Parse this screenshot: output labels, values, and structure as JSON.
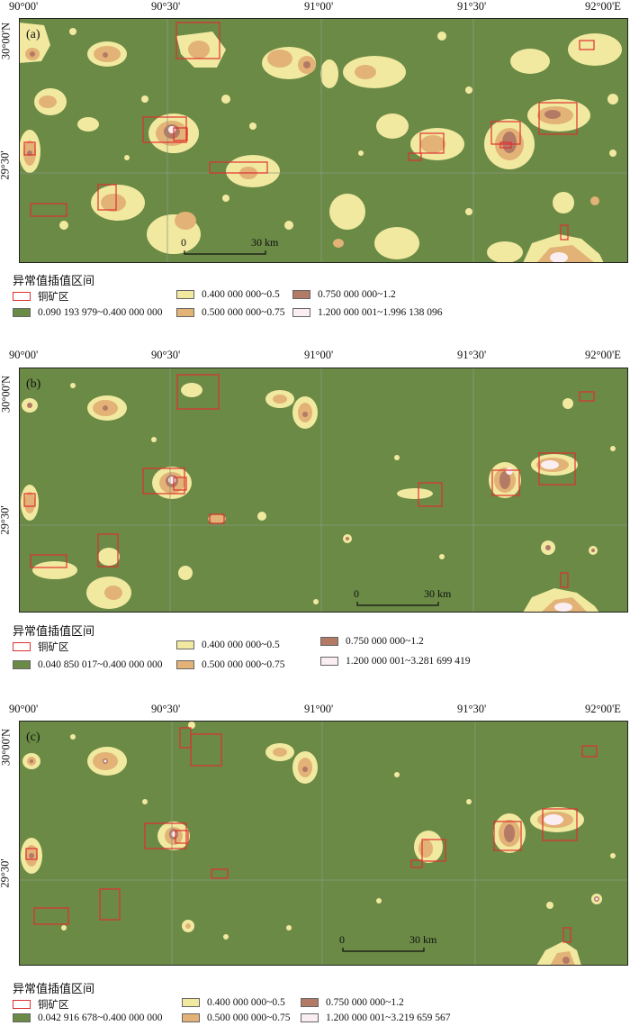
{
  "lon_labels": [
    "90°00'",
    "90°30'",
    "91°00'",
    "91°30'",
    "92°00'E"
  ],
  "lat_labels": [
    "30°00'N",
    "29°30'"
  ],
  "scale": {
    "zero": "0",
    "dist": "30 km"
  },
  "colors": {
    "bg": "#6a8a45",
    "c1": "#f2e9a0",
    "c2": "#e2b276",
    "c3": "#b37a66",
    "c4": "#fbeef2",
    "copper": "#e03030",
    "grid": "#8d9a80"
  },
  "panels": [
    {
      "id": "a",
      "label": "(a)",
      "legend": {
        "title": "异常值插值区间",
        "copper": "铜矿区",
        "r0": "0.090 193 979~0.400 000 000",
        "r1": "0.400 000 000~0.5",
        "r2": "0.500 000 000~0.75",
        "r3": "0.750 000 000~1.2",
        "r4": "1.200 000 001~1.996 138 096"
      }
    },
    {
      "id": "b",
      "label": "(b)",
      "legend": {
        "title": "异常值插值区间",
        "copper": "铜矿区",
        "r0": "0.040 850 017~0.400 000 000",
        "r1": "0.400 000 000~0.5",
        "r2": "0.500 000 000~0.75",
        "r3": "0.750 000 000~1.2",
        "r4": "1.200 000 001~3.281 699 419"
      }
    },
    {
      "id": "c",
      "label": "(c)",
      "legend": {
        "title": "异常值插值区间",
        "copper": "铜矿区",
        "r0": "0.042 916 678~0.400 000 000",
        "r1": "0.400 000 000~0.5",
        "r2": "0.500 000 000~0.75",
        "r3": "0.750 000 000~1.2",
        "r4": "1.200 000 001~3.219 659 567"
      }
    }
  ]
}
